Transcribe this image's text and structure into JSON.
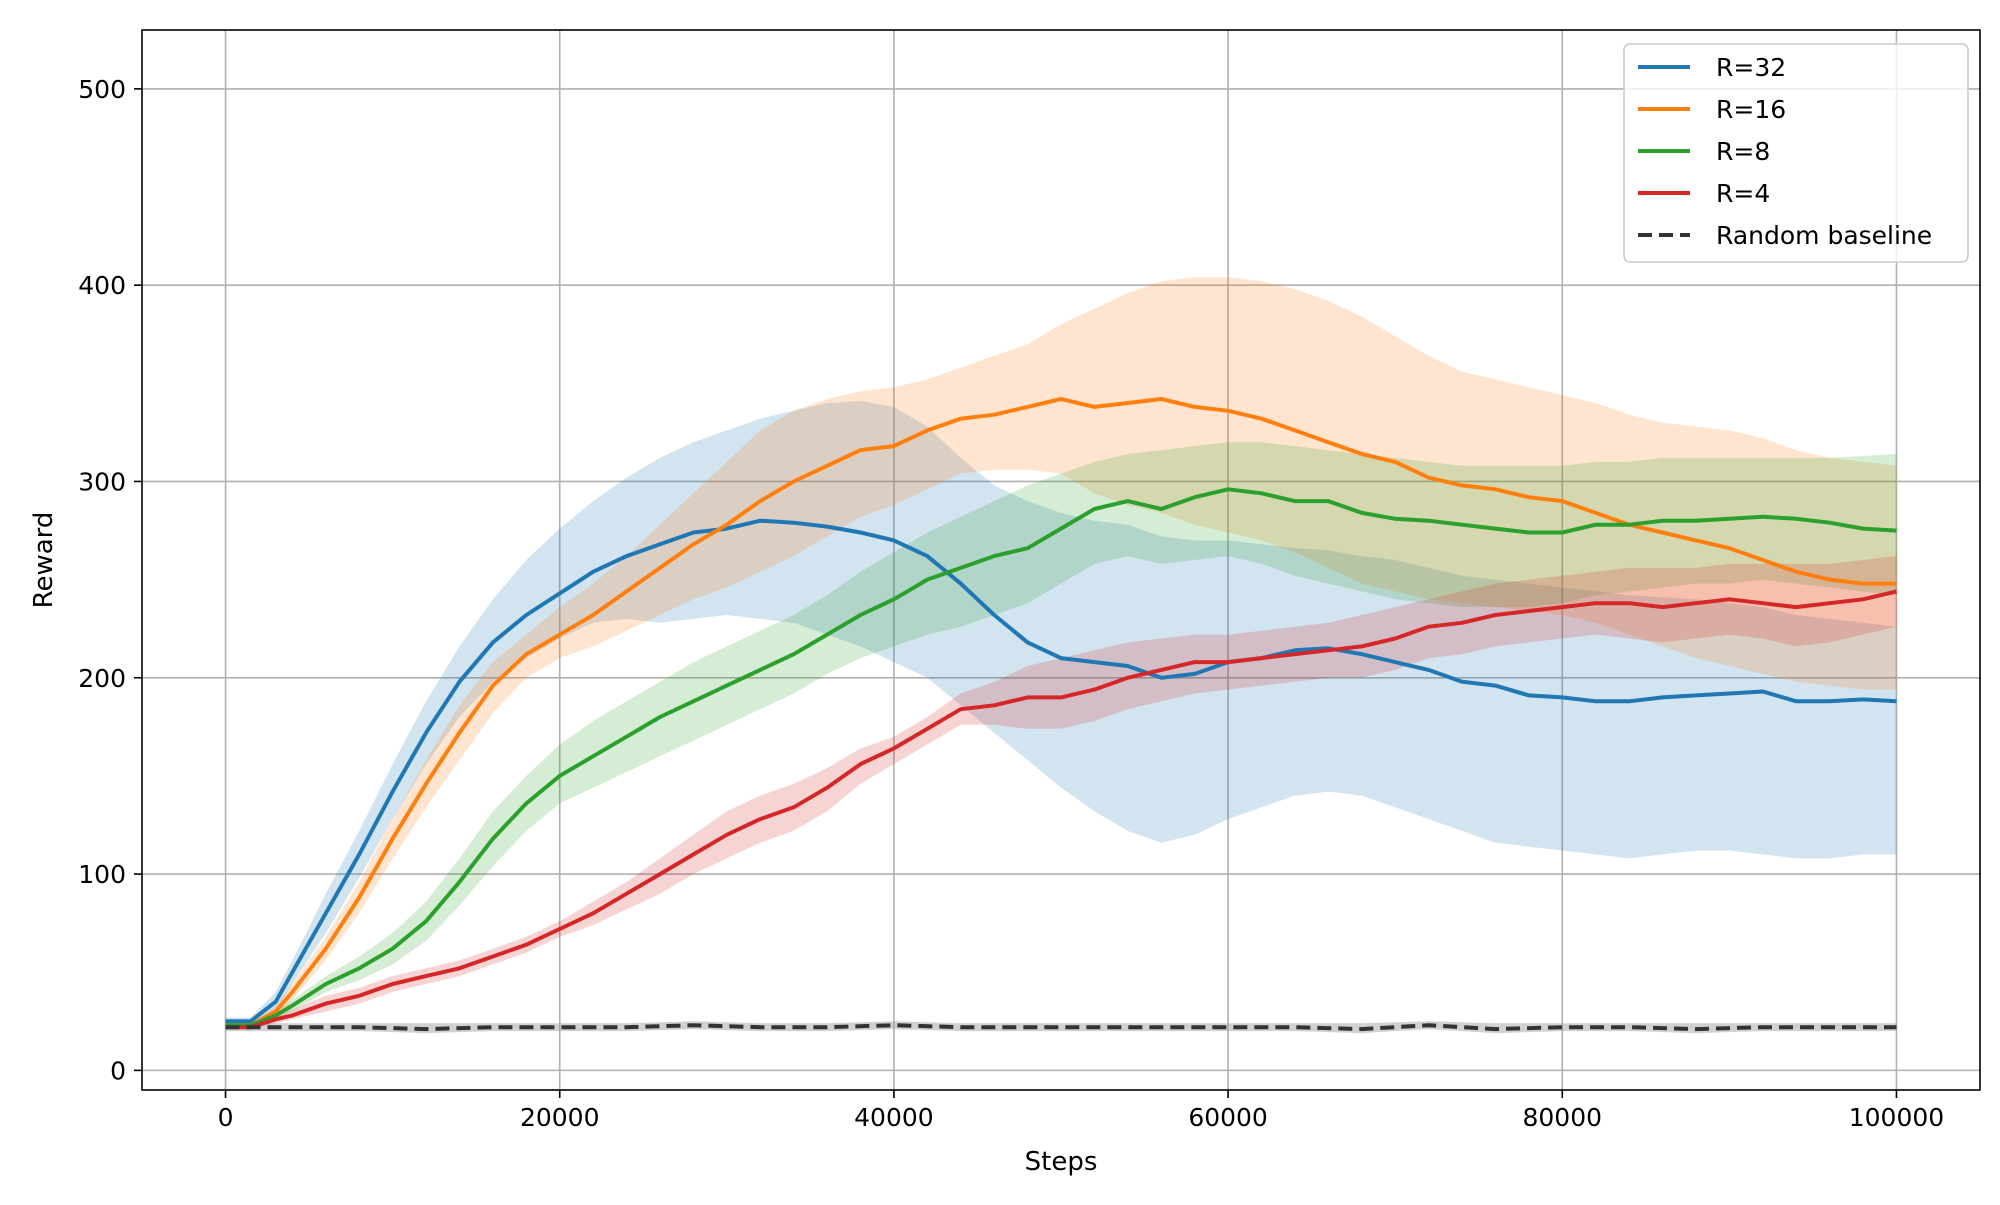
{
  "chart_data": {
    "type": "line",
    "title": "",
    "xlabel": "Steps",
    "ylabel": "Reward",
    "xlim": [
      -5000,
      105000
    ],
    "ylim": [
      -10,
      530
    ],
    "xticks": [
      0,
      20000,
      40000,
      60000,
      80000,
      100000
    ],
    "xtick_labels": [
      "0",
      "20000",
      "40000",
      "60000",
      "80000",
      "100000"
    ],
    "yticks": [
      0,
      100,
      200,
      300,
      400,
      500
    ],
    "ytick_labels": [
      "0",
      "100",
      "200",
      "300",
      "400",
      "500"
    ],
    "grid": true,
    "legend_position": "top-right",
    "series": [
      {
        "name": "R=32",
        "color": "#1f77b4",
        "style": "solid",
        "x": [
          0,
          1500,
          3000,
          4000,
          6000,
          8000,
          10000,
          12000,
          14000,
          16000,
          18000,
          20000,
          22000,
          24000,
          26000,
          28000,
          30000,
          32000,
          34000,
          36000,
          38000,
          40000,
          42000,
          44000,
          46000,
          48000,
          50000,
          52000,
          54000,
          56000,
          58000,
          60000,
          62000,
          64000,
          66000,
          68000,
          70000,
          72000,
          74000,
          76000,
          78000,
          80000,
          82000,
          84000,
          86000,
          88000,
          90000,
          92000,
          94000,
          96000,
          98000,
          100000
        ],
        "y": [
          25,
          25,
          35,
          50,
          80,
          110,
          142,
          172,
          198,
          218,
          232,
          243,
          254,
          262,
          268,
          274,
          276,
          280,
          279,
          277,
          274,
          270,
          262,
          248,
          232,
          218,
          210,
          208,
          206,
          200,
          202,
          208,
          210,
          214,
          215,
          212,
          208,
          204,
          198,
          196,
          191,
          190,
          188,
          188,
          190,
          191,
          192,
          193,
          188,
          188,
          189,
          188
        ],
        "upper": [
          27,
          27,
          40,
          56,
          90,
          122,
          156,
          188,
          216,
          240,
          260,
          276,
          290,
          302,
          312,
          320,
          326,
          332,
          336,
          340,
          341,
          338,
          328,
          312,
          298,
          290,
          284,
          280,
          278,
          272,
          270,
          270,
          268,
          266,
          265,
          262,
          260,
          256,
          252,
          250,
          248,
          246,
          244,
          242,
          241,
          240,
          238,
          236,
          232,
          230,
          228,
          226
        ],
        "lower": [
          23,
          23,
          30,
          44,
          70,
          98,
          128,
          156,
          180,
          198,
          210,
          220,
          228,
          230,
          228,
          230,
          232,
          230,
          228,
          222,
          216,
          208,
          200,
          186,
          172,
          158,
          144,
          132,
          122,
          116,
          120,
          128,
          134,
          140,
          142,
          140,
          134,
          128,
          122,
          116,
          114,
          112,
          110,
          108,
          110,
          112,
          112,
          110,
          108,
          108,
          110,
          110
        ]
      },
      {
        "name": "R=16",
        "color": "#ff7f0e",
        "style": "solid",
        "x": [
          0,
          1500,
          3000,
          4000,
          6000,
          8000,
          10000,
          12000,
          14000,
          16000,
          18000,
          20000,
          22000,
          24000,
          26000,
          28000,
          30000,
          32000,
          34000,
          36000,
          38000,
          40000,
          42000,
          44000,
          46000,
          48000,
          50000,
          52000,
          54000,
          56000,
          58000,
          60000,
          62000,
          64000,
          66000,
          68000,
          70000,
          72000,
          74000,
          76000,
          78000,
          80000,
          82000,
          84000,
          86000,
          88000,
          90000,
          92000,
          94000,
          96000,
          98000,
          100000
        ],
        "y": [
          23,
          23,
          30,
          40,
          62,
          88,
          118,
          146,
          172,
          196,
          212,
          222,
          232,
          244,
          256,
          268,
          278,
          290,
          300,
          308,
          316,
          318,
          326,
          332,
          334,
          338,
          342,
          338,
          340,
          342,
          338,
          336,
          332,
          326,
          320,
          314,
          310,
          302,
          298,
          296,
          292,
          290,
          284,
          278,
          274,
          270,
          266,
          260,
          254,
          250,
          248,
          248
        ],
        "upper": [
          24,
          24,
          33,
          44,
          68,
          96,
          128,
          158,
          186,
          208,
          222,
          236,
          248,
          262,
          278,
          294,
          310,
          326,
          336,
          342,
          346,
          348,
          352,
          358,
          364,
          370,
          380,
          388,
          396,
          402,
          404,
          404,
          402,
          398,
          392,
          384,
          374,
          364,
          356,
          352,
          348,
          344,
          340,
          334,
          330,
          328,
          326,
          322,
          316,
          312,
          310,
          308
        ],
        "lower": [
          22,
          22,
          27,
          36,
          56,
          80,
          108,
          134,
          158,
          182,
          200,
          210,
          216,
          224,
          232,
          240,
          246,
          254,
          262,
          272,
          282,
          288,
          296,
          304,
          306,
          306,
          304,
          294,
          288,
          284,
          278,
          274,
          270,
          264,
          256,
          248,
          244,
          240,
          238,
          236,
          234,
          232,
          228,
          222,
          216,
          210,
          206,
          202,
          198,
          196,
          194,
          194
        ]
      },
      {
        "name": "R=8",
        "color": "#2ca02c",
        "style": "solid",
        "x": [
          0,
          1500,
          3000,
          4000,
          6000,
          8000,
          10000,
          12000,
          14000,
          16000,
          18000,
          20000,
          22000,
          24000,
          26000,
          28000,
          30000,
          32000,
          34000,
          36000,
          38000,
          40000,
          42000,
          44000,
          46000,
          48000,
          50000,
          52000,
          54000,
          56000,
          58000,
          60000,
          62000,
          64000,
          66000,
          68000,
          70000,
          72000,
          74000,
          76000,
          78000,
          80000,
          82000,
          84000,
          86000,
          88000,
          90000,
          92000,
          94000,
          96000,
          98000,
          100000
        ],
        "y": [
          23,
          23,
          28,
          33,
          44,
          52,
          62,
          76,
          96,
          118,
          136,
          150,
          160,
          170,
          180,
          188,
          196,
          204,
          212,
          222,
          232,
          240,
          250,
          256,
          262,
          266,
          276,
          286,
          290,
          286,
          292,
          296,
          294,
          290,
          290,
          284,
          281,
          280,
          278,
          276,
          274,
          274,
          278,
          278,
          280,
          280,
          281,
          282,
          281,
          279,
          276,
          275
        ],
        "upper": [
          24,
          24,
          30,
          36,
          48,
          58,
          70,
          86,
          108,
          132,
          150,
          166,
          178,
          188,
          198,
          208,
          216,
          224,
          232,
          242,
          254,
          264,
          274,
          282,
          290,
          298,
          304,
          310,
          314,
          316,
          318,
          320,
          320,
          318,
          316,
          314,
          312,
          310,
          308,
          308,
          308,
          308,
          310,
          310,
          312,
          312,
          312,
          312,
          312,
          312,
          313,
          314
        ],
        "lower": [
          22,
          22,
          26,
          30,
          40,
          46,
          54,
          66,
          84,
          104,
          122,
          136,
          144,
          152,
          160,
          168,
          176,
          184,
          192,
          202,
          210,
          216,
          222,
          226,
          232,
          238,
          248,
          258,
          262,
          258,
          260,
          262,
          258,
          252,
          248,
          244,
          240,
          238,
          236,
          236,
          236,
          238,
          242,
          244,
          246,
          248,
          248,
          250,
          248,
          246,
          244,
          242
        ]
      },
      {
        "name": "R=4",
        "color": "#d62728",
        "style": "solid",
        "x": [
          0,
          1500,
          3000,
          4000,
          6000,
          8000,
          10000,
          12000,
          14000,
          16000,
          18000,
          20000,
          22000,
          24000,
          26000,
          28000,
          30000,
          32000,
          34000,
          36000,
          38000,
          40000,
          42000,
          44000,
          46000,
          48000,
          50000,
          52000,
          54000,
          56000,
          58000,
          60000,
          62000,
          64000,
          66000,
          68000,
          70000,
          72000,
          74000,
          76000,
          78000,
          80000,
          82000,
          84000,
          86000,
          88000,
          90000,
          92000,
          94000,
          96000,
          98000,
          100000
        ],
        "y": [
          22,
          22,
          26,
          28,
          34,
          38,
          44,
          48,
          52,
          58,
          64,
          72,
          80,
          90,
          100,
          110,
          120,
          128,
          134,
          144,
          156,
          164,
          174,
          184,
          186,
          190,
          190,
          194,
          200,
          204,
          208,
          208,
          210,
          212,
          214,
          216,
          220,
          226,
          228,
          232,
          234,
          236,
          238,
          238,
          236,
          238,
          240,
          238,
          236,
          238,
          240,
          244
        ],
        "upper": [
          23,
          23,
          28,
          31,
          38,
          42,
          48,
          52,
          56,
          62,
          68,
          76,
          86,
          96,
          108,
          120,
          132,
          140,
          146,
          154,
          164,
          170,
          180,
          192,
          198,
          206,
          210,
          214,
          218,
          220,
          222,
          222,
          224,
          226,
          228,
          232,
          236,
          240,
          244,
          248,
          250,
          252,
          254,
          256,
          256,
          256,
          258,
          258,
          258,
          258,
          260,
          262
        ],
        "lower": [
          21,
          21,
          24,
          26,
          30,
          34,
          40,
          44,
          48,
          54,
          60,
          68,
          74,
          82,
          90,
          100,
          108,
          116,
          122,
          132,
          146,
          156,
          166,
          176,
          176,
          174,
          174,
          178,
          184,
          188,
          192,
          194,
          196,
          198,
          200,
          200,
          204,
          210,
          212,
          216,
          218,
          220,
          222,
          220,
          218,
          220,
          222,
          220,
          216,
          218,
          222,
          226
        ]
      },
      {
        "name": "Random baseline",
        "color": "#333333",
        "style": "dashed",
        "x": [
          0,
          4000,
          8000,
          12000,
          16000,
          20000,
          24000,
          28000,
          32000,
          36000,
          40000,
          44000,
          48000,
          52000,
          56000,
          60000,
          64000,
          68000,
          72000,
          76000,
          80000,
          84000,
          88000,
          92000,
          96000,
          100000
        ],
        "y": [
          22,
          22,
          22,
          21,
          22,
          22,
          22,
          23,
          22,
          22,
          23,
          22,
          22,
          22,
          22,
          22,
          22,
          21,
          23,
          21,
          22,
          22,
          21,
          22,
          22,
          22
        ],
        "upper": [
          24,
          24,
          24,
          24,
          24,
          24,
          24,
          25,
          24,
          24,
          25,
          24,
          24,
          24,
          24,
          24,
          24,
          24,
          25,
          24,
          24,
          24,
          24,
          24,
          24,
          24
        ],
        "lower": [
          20,
          20,
          20,
          19,
          20,
          20,
          20,
          21,
          20,
          20,
          21,
          20,
          20,
          20,
          20,
          20,
          20,
          19,
          21,
          19,
          20,
          20,
          19,
          20,
          20,
          20
        ]
      }
    ]
  }
}
